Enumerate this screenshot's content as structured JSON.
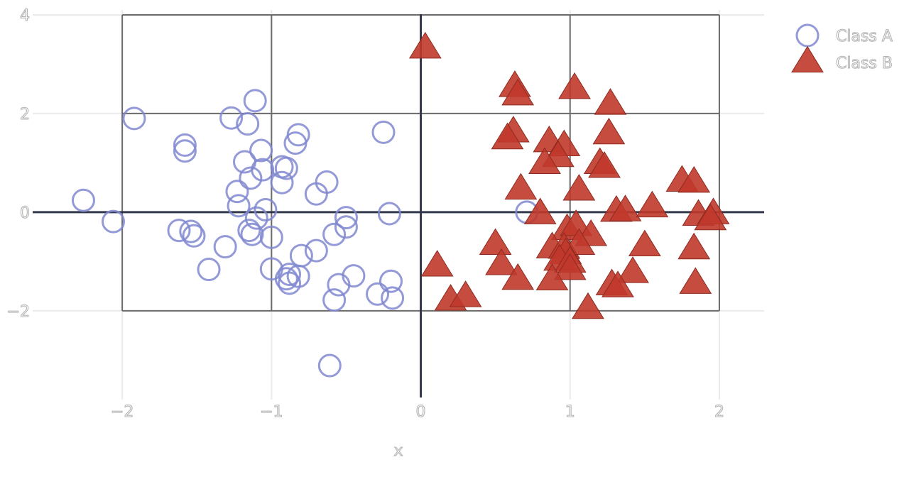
{
  "chart_data": {
    "type": "scatter",
    "title": "",
    "xlabel": "x",
    "ylabel": "",
    "xlim": [
      -2.6,
      2.3
    ],
    "ylim": [
      -3.8,
      4.1
    ],
    "x_ticks": [
      -2,
      -1,
      0,
      1,
      2
    ],
    "x_tick_labels": [
      "−2",
      "−1",
      "0",
      "1",
      "2"
    ],
    "y_ticks": [
      -2,
      0,
      2,
      4
    ],
    "y_tick_labels": [
      "−2",
      "0",
      "2",
      "4"
    ],
    "grid": true,
    "zero_lines": true,
    "reference_box": {
      "x": [
        -2,
        2
      ],
      "y": [
        -2,
        4
      ],
      "grid_step": 1,
      "y_grid_step": 2
    },
    "legend_position": "top-right",
    "series": [
      {
        "name": "Class A",
        "marker": "circle-open",
        "color": "#8088d0",
        "points": [
          [
            -1.92,
            1.9
          ],
          [
            -1.11,
            2.26
          ],
          [
            -1.27,
            1.91
          ],
          [
            -1.16,
            1.79
          ],
          [
            -0.82,
            1.57
          ],
          [
            -0.84,
            1.4
          ],
          [
            -0.25,
            1.62
          ],
          [
            -1.58,
            1.36
          ],
          [
            -1.58,
            1.24
          ],
          [
            -1.07,
            1.25
          ],
          [
            -1.18,
            1.02
          ],
          [
            -1.06,
            0.86
          ],
          [
            -0.93,
            0.92
          ],
          [
            -0.9,
            0.89
          ],
          [
            -1.14,
            0.69
          ],
          [
            -0.93,
            0.6
          ],
          [
            -0.63,
            0.61
          ],
          [
            -0.7,
            0.37
          ],
          [
            -1.23,
            0.42
          ],
          [
            -2.26,
            0.24
          ],
          [
            -1.22,
            0.13
          ],
          [
            -1.04,
            0.05
          ],
          [
            -2.06,
            -0.19
          ],
          [
            -1.1,
            -0.12
          ],
          [
            -0.5,
            -0.11
          ],
          [
            -0.21,
            -0.03
          ],
          [
            0.71,
            0.0
          ],
          [
            -1.62,
            -0.37
          ],
          [
            -1.54,
            -0.39
          ],
          [
            -1.52,
            -0.48
          ],
          [
            -1.15,
            -0.37
          ],
          [
            -1.13,
            -0.45
          ],
          [
            -1.0,
            -0.51
          ],
          [
            -0.58,
            -0.45
          ],
          [
            -0.5,
            -0.3
          ],
          [
            -1.31,
            -0.7
          ],
          [
            -0.8,
            -0.88
          ],
          [
            -0.7,
            -0.78
          ],
          [
            -1.42,
            -1.16
          ],
          [
            -1.0,
            -1.15
          ],
          [
            -0.88,
            -1.26
          ],
          [
            -0.9,
            -1.35
          ],
          [
            -0.88,
            -1.44
          ],
          [
            -0.82,
            -1.3
          ],
          [
            -0.45,
            -1.29
          ],
          [
            -0.55,
            -1.47
          ],
          [
            -0.58,
            -1.78
          ],
          [
            -0.29,
            -1.66
          ],
          [
            -0.2,
            -1.4
          ],
          [
            -0.19,
            -1.74
          ],
          [
            -0.61,
            -3.11
          ]
        ]
      },
      {
        "name": "Class B",
        "marker": "triangle-up",
        "color": "#c0392b",
        "points": [
          [
            0.03,
            3.32
          ],
          [
            0.63,
            2.54
          ],
          [
            0.65,
            2.37
          ],
          [
            1.03,
            2.5
          ],
          [
            1.27,
            2.18
          ],
          [
            0.62,
            1.62
          ],
          [
            0.58,
            1.48
          ],
          [
            1.26,
            1.58
          ],
          [
            0.86,
            1.42
          ],
          [
            0.96,
            1.34
          ],
          [
            0.92,
            1.12
          ],
          [
            0.83,
            0.98
          ],
          [
            1.2,
            0.98
          ],
          [
            1.23,
            0.9
          ],
          [
            0.67,
            0.46
          ],
          [
            1.06,
            0.44
          ],
          [
            1.75,
            0.62
          ],
          [
            1.83,
            0.6
          ],
          [
            0.8,
            -0.04
          ],
          [
            1.31,
            0.01
          ],
          [
            1.37,
            0.02
          ],
          [
            1.55,
            0.1
          ],
          [
            1.86,
            -0.07
          ],
          [
            1.96,
            -0.04
          ],
          [
            1.94,
            -0.16
          ],
          [
            0.98,
            -0.36
          ],
          [
            1.04,
            -0.28
          ],
          [
            1.14,
            -0.48
          ],
          [
            0.88,
            -0.73
          ],
          [
            0.96,
            -0.74
          ],
          [
            1.06,
            -0.66
          ],
          [
            0.5,
            -0.66
          ],
          [
            1.5,
            -0.69
          ],
          [
            0.97,
            -0.85
          ],
          [
            0.93,
            -0.98
          ],
          [
            1.0,
            -1.02
          ],
          [
            0.54,
            -1.07
          ],
          [
            1.0,
            -1.17
          ],
          [
            0.88,
            -1.38
          ],
          [
            0.65,
            -1.37
          ],
          [
            1.83,
            -0.75
          ],
          [
            1.42,
            -1.23
          ],
          [
            1.28,
            -1.48
          ],
          [
            1.32,
            -1.52
          ],
          [
            1.84,
            -1.45
          ],
          [
            0.11,
            -1.1
          ],
          [
            0.2,
            -1.79
          ],
          [
            0.3,
            -1.72
          ],
          [
            1.12,
            -1.96
          ]
        ]
      }
    ]
  }
}
